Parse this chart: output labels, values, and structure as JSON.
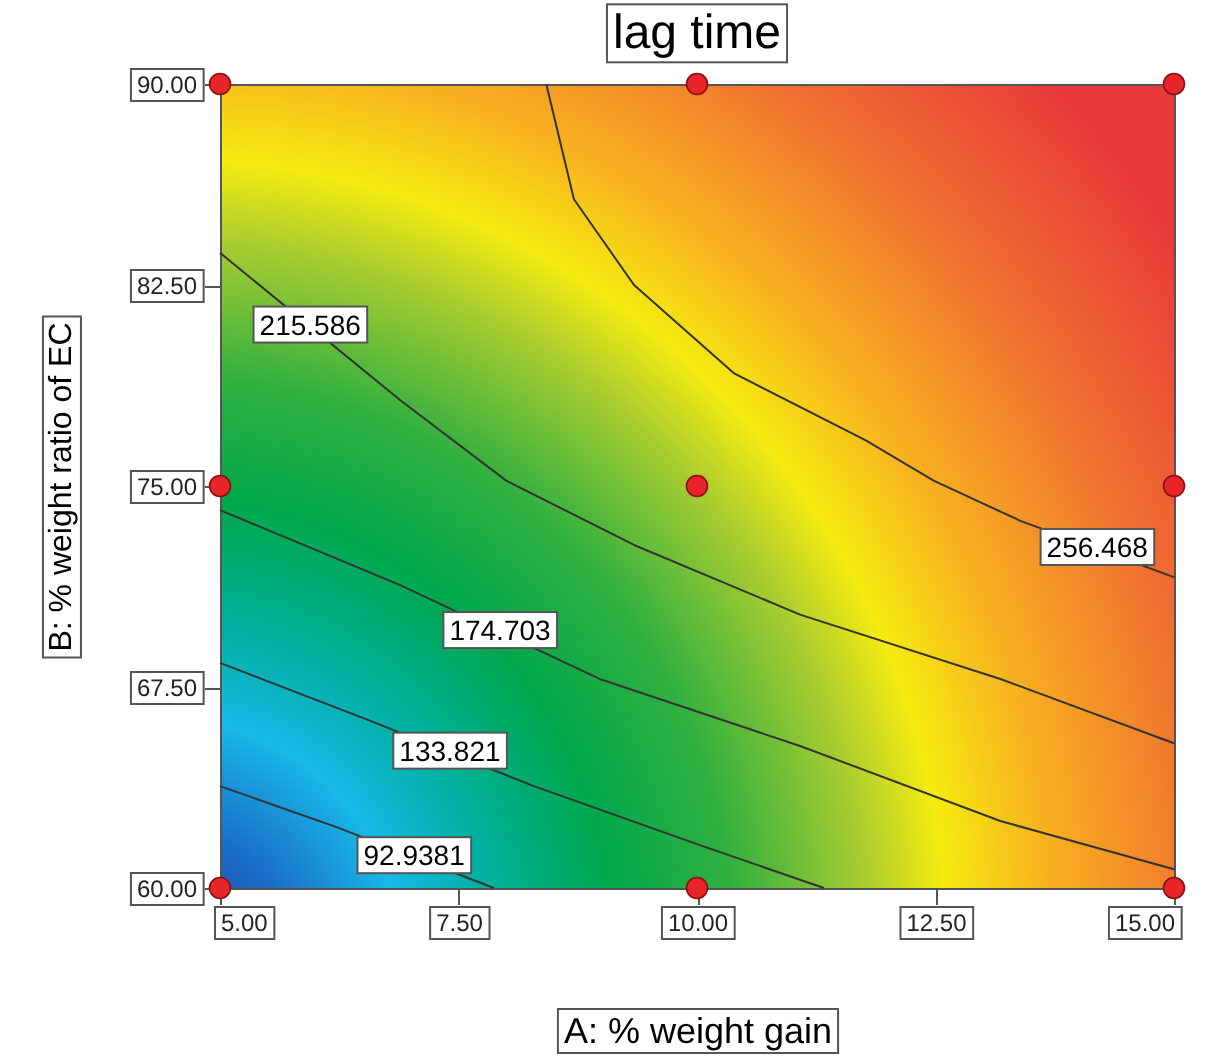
{
  "chart_data": {
    "type": "line",
    "title": "lag time",
    "xlabel": "A: % weight gain",
    "ylabel": "B: % weight ratio of EC",
    "xlim": [
      5,
      15
    ],
    "ylim": [
      60,
      90
    ],
    "xticks": [
      {
        "value": 5,
        "label": "5.00"
      },
      {
        "value": 7.5,
        "label": "7.50"
      },
      {
        "value": 10,
        "label": "10.00"
      },
      {
        "value": 12.5,
        "label": "12.50"
      },
      {
        "value": 15,
        "label": "15.00"
      }
    ],
    "yticks": [
      {
        "value": 60,
        "label": "60.00"
      },
      {
        "value": 67.5,
        "label": "67.50"
      },
      {
        "value": 75,
        "label": "75.00"
      },
      {
        "value": 82.5,
        "label": "82.50"
      },
      {
        "value": 90,
        "label": "90.00"
      }
    ],
    "grid": false,
    "series": [
      {
        "name": "256.468",
        "color": "#333333",
        "x": [
          8.42,
          8.71,
          9.34,
          10.39,
          11.77,
          12.48,
          13.39,
          15
        ],
        "values": [
          90,
          85.7,
          82.5,
          79.2,
          76.7,
          75.2,
          73.7,
          71.6
        ]
      },
      {
        "name": "215.586",
        "color": "#333333",
        "x": [
          5,
          6.89,
          8.0,
          9.34,
          11.08,
          13.18,
          15
        ],
        "values": [
          83.7,
          78.2,
          75.2,
          72.8,
          70.2,
          67.8,
          65.4
        ]
      },
      {
        "name": "174.703",
        "color": "#333333",
        "x": [
          5,
          6.89,
          8.98,
          11.08,
          13.18,
          15
        ],
        "values": [
          74.1,
          71.3,
          67.8,
          65.3,
          62.5,
          60.7
        ]
      },
      {
        "name": "133.821",
        "color": "#333333",
        "x": [
          5,
          6.53,
          8.29,
          10.03,
          11.33
        ],
        "values": [
          68.4,
          66.3,
          63.8,
          61.6,
          60
        ]
      },
      {
        "name": "92.9381",
        "color": "#333333",
        "x": [
          5,
          6.2,
          7.87
        ],
        "values": [
          63.8,
          62.3,
          60
        ]
      },
      {
        "type": "scatter",
        "marker": "circle",
        "color": "#e8262a",
        "x": [
          5,
          10,
          15,
          5,
          10,
          15,
          5,
          10,
          15
        ],
        "values": [
          60,
          60,
          60,
          75,
          75,
          75,
          90,
          90,
          90
        ]
      }
    ]
  }
}
